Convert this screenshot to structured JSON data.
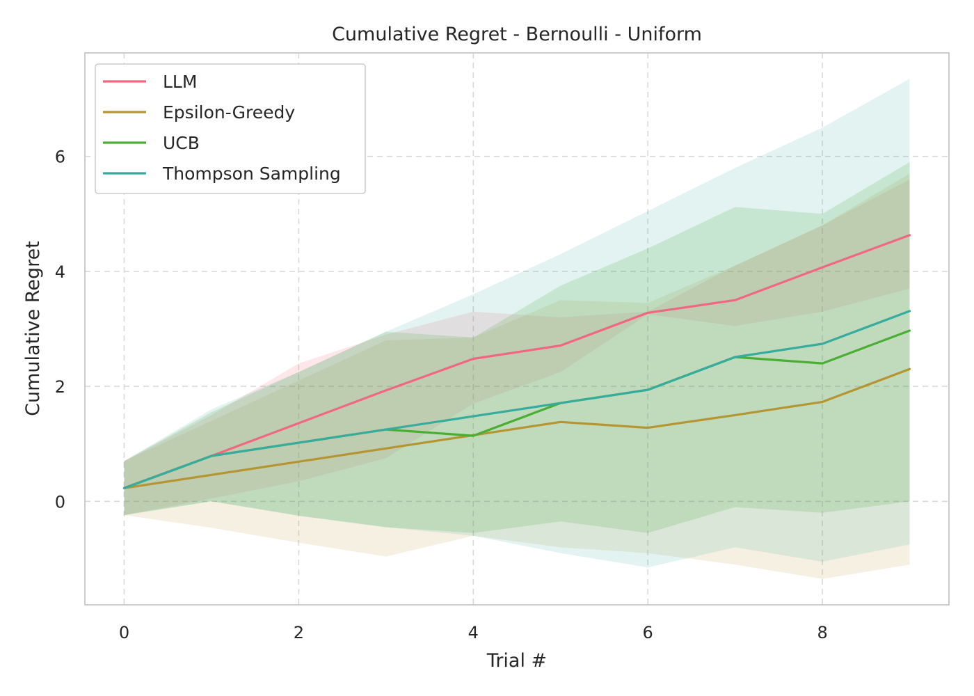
{
  "chart_data": {
    "type": "line",
    "title": "Cumulative Regret - Bernoulli - Uniform",
    "xlabel": "Trial #",
    "ylabel": "Cumulative Regret",
    "xlim": [
      -0.45,
      9.45
    ],
    "ylim": [
      -1.8,
      7.8
    ],
    "xticks": [
      0,
      2,
      4,
      6,
      8
    ],
    "yticks": [
      0,
      2,
      4,
      6
    ],
    "grid": true,
    "legend_position": "top-left",
    "x": [
      0,
      1,
      2,
      3,
      4,
      5,
      6,
      7,
      8,
      9
    ],
    "series": [
      {
        "name": "LLM",
        "color": "#f0687f",
        "band_opacity": 0.16,
        "values": [
          0.23,
          0.79,
          1.36,
          1.93,
          2.48,
          2.71,
          3.28,
          3.5,
          4.07,
          4.63
        ],
        "lower": [
          -0.24,
          0.05,
          0.35,
          0.75,
          1.7,
          2.25,
          3.25,
          3.05,
          3.3,
          3.7
        ],
        "upper": [
          0.7,
          1.5,
          2.4,
          2.9,
          3.3,
          3.2,
          3.3,
          4.1,
          4.8,
          5.6
        ]
      },
      {
        "name": "Epsilon-Greedy",
        "color": "#b59532",
        "band_opacity": 0.14,
        "values": [
          0.23,
          0.46,
          0.69,
          0.92,
          1.15,
          1.38,
          1.28,
          1.5,
          1.73,
          2.3
        ],
        "lower": [
          -0.24,
          -0.46,
          -0.72,
          -0.96,
          -0.6,
          -0.8,
          -0.9,
          -1.1,
          -1.35,
          -1.1
        ],
        "upper": [
          0.7,
          1.4,
          2.1,
          2.8,
          2.85,
          3.5,
          3.45,
          4.1,
          4.8,
          5.7
        ]
      },
      {
        "name": "UCB",
        "color": "#4aae33",
        "band_opacity": 0.18,
        "values": [
          0.23,
          0.79,
          1.02,
          1.25,
          1.14,
          1.71,
          1.94,
          2.51,
          2.4,
          2.97
        ],
        "lower": [
          -0.24,
          0.0,
          -0.25,
          -0.45,
          -0.55,
          -0.35,
          -0.55,
          -0.1,
          -0.2,
          0.0
        ],
        "upper": [
          0.7,
          1.55,
          2.25,
          2.95,
          2.85,
          3.75,
          4.4,
          5.12,
          5.0,
          5.9
        ]
      },
      {
        "name": "Thompson Sampling",
        "color": "#36ab9e",
        "band_opacity": 0.14,
        "values": [
          0.23,
          0.79,
          1.02,
          1.25,
          1.48,
          1.71,
          1.94,
          2.51,
          2.74,
          3.31
        ],
        "lower": [
          -0.24,
          0.0,
          -0.25,
          -0.45,
          -0.6,
          -0.9,
          -1.15,
          -0.8,
          -1.05,
          -0.75
        ],
        "upper": [
          0.7,
          1.6,
          2.25,
          2.95,
          3.6,
          4.3,
          5.05,
          5.8,
          6.5,
          7.35
        ]
      }
    ]
  }
}
